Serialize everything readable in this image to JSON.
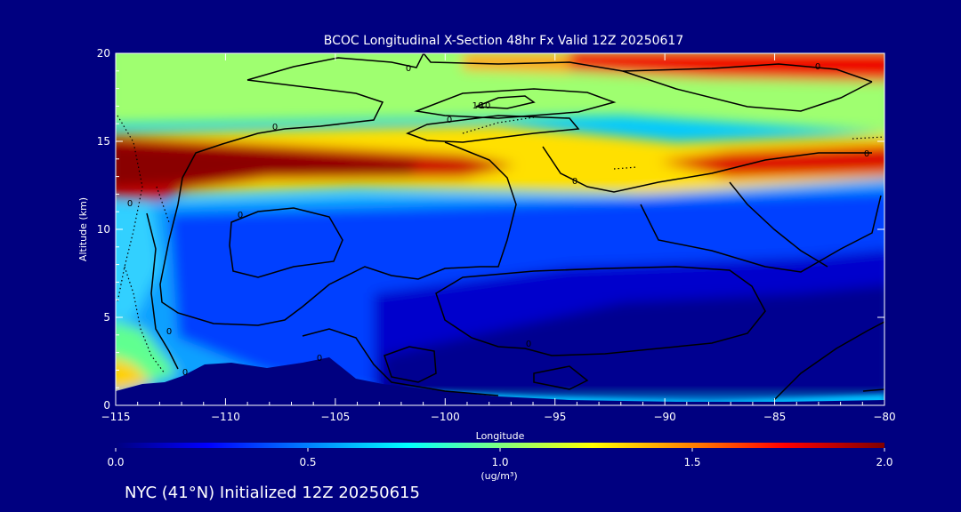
{
  "chart_data": {
    "type": "heatmap",
    "title": "BCOC Longitudinal X-Section 48hr  Fx Valid 12Z 20250617",
    "xlabel": "Longitude",
    "ylabel": "Altitude (km)",
    "xlim": [
      -115,
      -80
    ],
    "ylim": [
      0,
      20
    ],
    "x_ticks": [
      -115,
      -110,
      -105,
      -100,
      -95,
      -90,
      -85,
      -80
    ],
    "x_tick_labels": [
      "−115",
      "−110",
      "−105",
      "−100",
      "−95",
      "−90",
      "−85",
      "−80"
    ],
    "y_ticks": [
      0,
      5,
      10,
      15,
      20
    ],
    "y_tick_labels": [
      "0",
      "5",
      "10",
      "15",
      "20"
    ],
    "colorbar": {
      "min": 0.0,
      "max": 2.0,
      "ticks": [
        0.0,
        0.5,
        1.0,
        1.5,
        2.0
      ],
      "tick_labels": [
        "0.0",
        "0.5",
        "1.0",
        "1.5",
        "2.0"
      ],
      "units": "(ug/m³)",
      "colors": [
        "#000080",
        "#0000ff",
        "#0080ff",
        "#00ffff",
        "#80ff80",
        "#ffff00",
        "#ff8000",
        "#ff0000",
        "#800000"
      ]
    },
    "contour_labels": [
      "0",
      "0",
      "0",
      "0",
      "0",
      "0",
      "0",
      "0",
      "0",
      "0",
      "0",
      "10",
      "10",
      "0"
    ],
    "footer": "NYC (41°N) Initialized 12Z 20250615"
  }
}
